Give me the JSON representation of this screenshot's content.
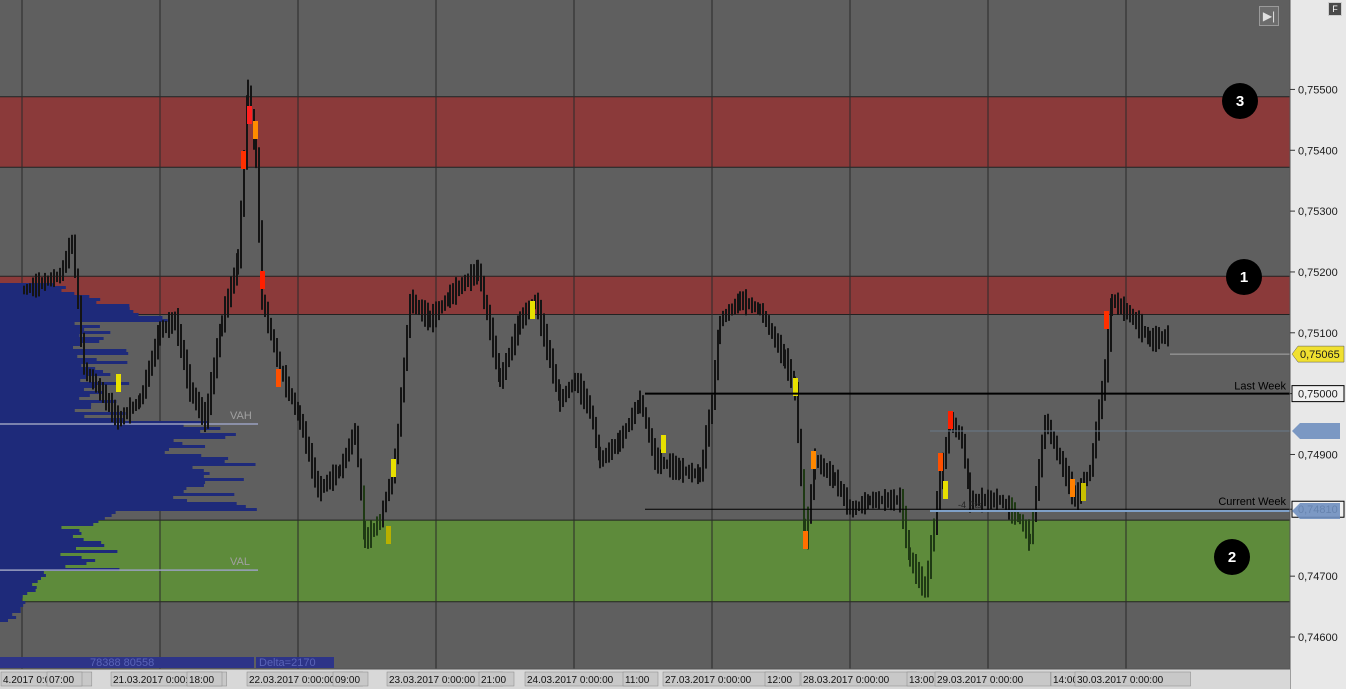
{
  "chart_data": {
    "type": "candlestick-footprint",
    "y_axis": {
      "ticks": [
        "0,75500",
        "0,75400",
        "0,75300",
        "0,75200",
        "0,75100",
        "0,75000",
        "0,74900",
        "0,74810",
        "0,74700",
        "0,74600"
      ],
      "tick_values": [
        0.755,
        0.754,
        0.753,
        0.752,
        0.751,
        0.75,
        0.749,
        0.7481,
        0.747,
        0.746
      ],
      "ylim": [
        0.74575,
        0.7564
      ]
    },
    "x_axis": {
      "labels": [
        "4.2017 0:00:00",
        "07:00",
        "21.03.2017 0:00:00",
        "18:00",
        "22.03.2017 0:00:00",
        "09:00",
        "23.03.2017 0:00:00",
        "21:00",
        "24.03.2017 0:00:00",
        "11:00",
        "27.03.2017 0:00:00",
        "12:00",
        "28.03.2017 0:00:00",
        "13:00",
        "29.03.2017 0:00:00",
        "14:00",
        "30.03.2017 0:00:00"
      ]
    },
    "zones": [
      {
        "label": "3",
        "from": 0.75372,
        "to": 0.75488,
        "color": "#8b3a3a"
      },
      {
        "label": "1",
        "from": 0.7513,
        "to": 0.75193,
        "color": "#8b3a3a"
      },
      {
        "label": "2",
        "from": 0.74658,
        "to": 0.74792,
        "color": "#5e8b3b"
      }
    ],
    "levels": [
      {
        "label": "Last Week",
        "value": 0.75,
        "price_tag": "0,75000"
      },
      {
        "label": "Current Week",
        "value": 0.7481,
        "price_tag": "0,74810"
      }
    ],
    "current_price": {
      "value": 0.75065,
      "label": "0,75065"
    },
    "volume_profile": {
      "vah_label": "VAH",
      "vah": 0.7495,
      "val_label": "VAL",
      "val": 0.7471,
      "stats_label": "78388 80558",
      "delta_label": "Delta=2170"
    },
    "annotation": "-4 Pts",
    "colors": {
      "background": "#5f5f5f",
      "zone_red": "#8b3a3a",
      "zone_green": "#5e8b3b",
      "profile": "#1e2a7a",
      "price_tag": "#f0e030",
      "axis_panel": "#e8e8e8"
    }
  },
  "controls": {
    "nav_icon": "skip-forward-icon",
    "f_label": "F"
  }
}
